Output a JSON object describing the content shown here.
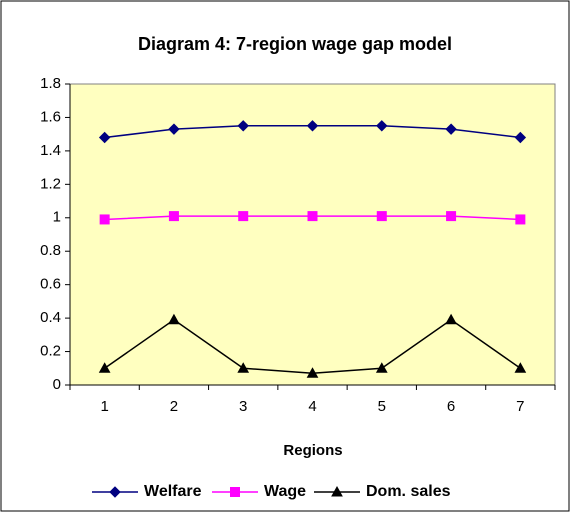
{
  "chart_data": {
    "type": "line",
    "title": "Diagram 4: 7-region wage gap model",
    "x_label": "Regions",
    "categories": [
      "1",
      "2",
      "3",
      "4",
      "5",
      "6",
      "7"
    ],
    "series": [
      {
        "name": "Welfare",
        "color": "#000080",
        "marker": "diamond",
        "values": [
          1.48,
          1.53,
          1.55,
          1.55,
          1.55,
          1.53,
          1.48
        ]
      },
      {
        "name": "Wage",
        "color": "#ff00ff",
        "marker": "square",
        "values": [
          0.99,
          1.01,
          1.01,
          1.01,
          1.01,
          1.01,
          0.99
        ]
      },
      {
        "name": "Dom. sales",
        "color": "#000000",
        "marker": "triangle",
        "values": [
          0.1,
          0.39,
          0.1,
          0.07,
          0.1,
          0.39,
          0.1
        ]
      }
    ],
    "ylim": [
      0,
      1.8
    ],
    "yticks": [
      0,
      0.2,
      0.4,
      0.6,
      0.8,
      1,
      1.2,
      1.4,
      1.6,
      1.8
    ],
    "legend": "bottom"
  }
}
